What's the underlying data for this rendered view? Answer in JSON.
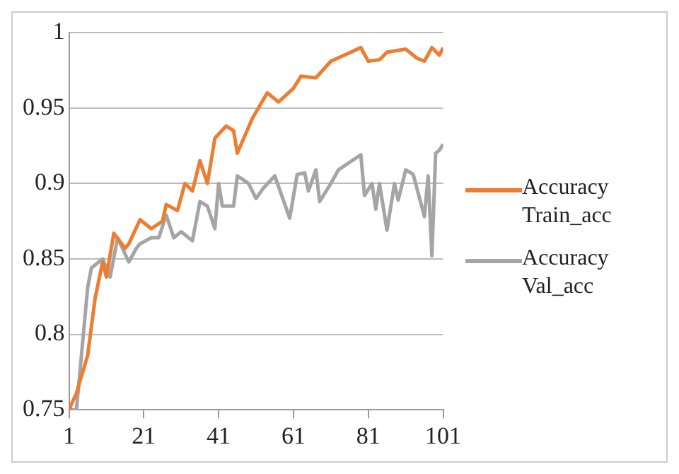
{
  "chart_data": {
    "type": "line",
    "xlim": [
      1,
      101
    ],
    "xticks": [
      1,
      21,
      41,
      61,
      81,
      101
    ],
    "ylim": [
      0.75,
      1
    ],
    "yticks": [
      0.75,
      0.8,
      0.85,
      0.9,
      0.95,
      1
    ],
    "grid": "y",
    "legend": "right",
    "marker": "none",
    "line_style": "solid",
    "series": [
      {
        "name": "Accuracy Train_acc",
        "color": "#ed7d31",
        "x": [
          1,
          3,
          6,
          8,
          10,
          11,
          13,
          16,
          17,
          20,
          23,
          26,
          27,
          30,
          32,
          34,
          36,
          38,
          40,
          43,
          45,
          46,
          50,
          54,
          57,
          61,
          63,
          67,
          71,
          79,
          81,
          84,
          86,
          91,
          94,
          96,
          98,
          100,
          101
        ],
        "values": [
          0.75,
          0.761,
          0.786,
          0.824,
          0.848,
          0.838,
          0.867,
          0.857,
          0.86,
          0.876,
          0.87,
          0.875,
          0.886,
          0.882,
          0.9,
          0.895,
          0.915,
          0.9,
          0.93,
          0.938,
          0.935,
          0.92,
          0.943,
          0.96,
          0.954,
          0.963,
          0.971,
          0.97,
          0.981,
          0.99,
          0.981,
          0.982,
          0.987,
          0.989,
          0.983,
          0.981,
          0.99,
          0.985,
          0.99
        ]
      },
      {
        "name": "Accuracy Val_acc",
        "color": "#a5a5a5",
        "x": [
          1,
          3,
          6,
          7,
          10,
          12,
          14,
          17,
          19,
          20,
          23,
          25,
          27,
          29,
          31,
          34,
          36,
          38,
          40,
          41,
          42,
          45,
          46,
          49,
          51,
          53,
          56,
          60,
          62,
          64,
          65,
          67,
          68,
          71,
          73,
          79,
          80,
          82,
          83,
          84,
          86,
          88,
          89,
          91,
          93,
          96,
          97,
          98,
          99,
          100,
          101
        ],
        "values": [
          0.75,
          0.75,
          0.831,
          0.844,
          0.85,
          0.838,
          0.864,
          0.848,
          0.857,
          0.86,
          0.864,
          0.864,
          0.879,
          0.864,
          0.868,
          0.862,
          0.888,
          0.885,
          0.87,
          0.9,
          0.885,
          0.885,
          0.905,
          0.9,
          0.89,
          0.897,
          0.905,
          0.877,
          0.906,
          0.907,
          0.895,
          0.909,
          0.888,
          0.9,
          0.909,
          0.919,
          0.892,
          0.9,
          0.883,
          0.9,
          0.869,
          0.9,
          0.889,
          0.909,
          0.906,
          0.878,
          0.905,
          0.852,
          0.92,
          0.922,
          0.926
        ]
      }
    ]
  }
}
